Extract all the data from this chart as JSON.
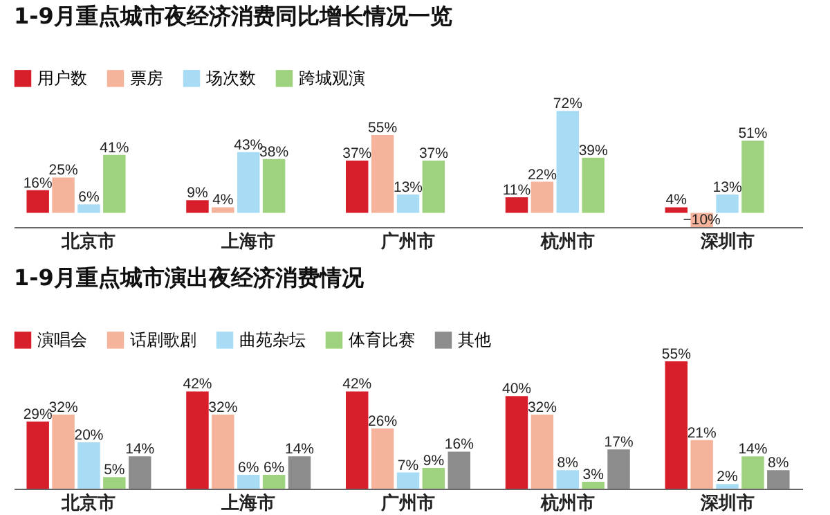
{
  "chart_data": [
    {
      "type": "bar",
      "title": "1-9月重点城市夜经济消费同比增长情况一览",
      "categories": [
        "北京市",
        "上海市",
        "广州市",
        "杭州市",
        "深圳市"
      ],
      "legend": "top left",
      "series": [
        {
          "name": "用户数",
          "color": "#d71f2b",
          "values": [
            16,
            9,
            37,
            11,
            4
          ],
          "value_labels": [
            "16%",
            "9%",
            "37%",
            "11%",
            "4%"
          ]
        },
        {
          "name": "票房",
          "color": "#f5b39c",
          "values": [
            25,
            4,
            55,
            22,
            -10
          ],
          "value_labels": [
            "25%",
            "4%",
            "55%",
            "22%",
            "−10%"
          ]
        },
        {
          "name": "场次数",
          "color": "#a8dcf5",
          "values": [
            6,
            43,
            13,
            72,
            13
          ],
          "value_labels": [
            "6%",
            "43%",
            "13%",
            "72%",
            "13%"
          ]
        },
        {
          "name": "跨城观演",
          "color": "#9fd27f",
          "values": [
            41,
            38,
            37,
            39,
            51
          ],
          "value_labels": [
            "41%",
            "38%",
            "37%",
            "39%",
            "51%"
          ]
        }
      ]
    },
    {
      "type": "bar",
      "title": "1-9月重点城市演出夜经济消费情况",
      "categories": [
        "北京市",
        "上海市",
        "广州市",
        "杭州市",
        "深圳市"
      ],
      "legend": "top left",
      "series": [
        {
          "name": "演唱会",
          "color": "#d71f2b",
          "values": [
            29,
            42,
            42,
            40,
            55
          ],
          "value_labels": [
            "29%",
            "42%",
            "42%",
            "40%",
            "55%"
          ]
        },
        {
          "name": "话剧歌剧",
          "color": "#f5b39c",
          "values": [
            32,
            32,
            26,
            32,
            21
          ],
          "value_labels": [
            "32%",
            "32%",
            "26%",
            "32%",
            "21%"
          ]
        },
        {
          "name": "曲苑杂坛",
          "color": "#a8dcf5",
          "values": [
            20,
            6,
            7,
            8,
            2
          ],
          "value_labels": [
            "20%",
            "6%",
            "7%",
            "8%",
            "2%"
          ]
        },
        {
          "name": "体育比赛",
          "color": "#9fd27f",
          "values": [
            5,
            6,
            9,
            3,
            14
          ],
          "value_labels": [
            "5%",
            "6%",
            "9%",
            "3%",
            "14%"
          ]
        },
        {
          "name": "其他",
          "color": "#8c8c8c",
          "values": [
            14,
            14,
            16,
            17,
            8
          ],
          "value_labels": [
            "14%",
            "14%",
            "16%",
            "17%",
            "8%"
          ]
        }
      ]
    }
  ]
}
